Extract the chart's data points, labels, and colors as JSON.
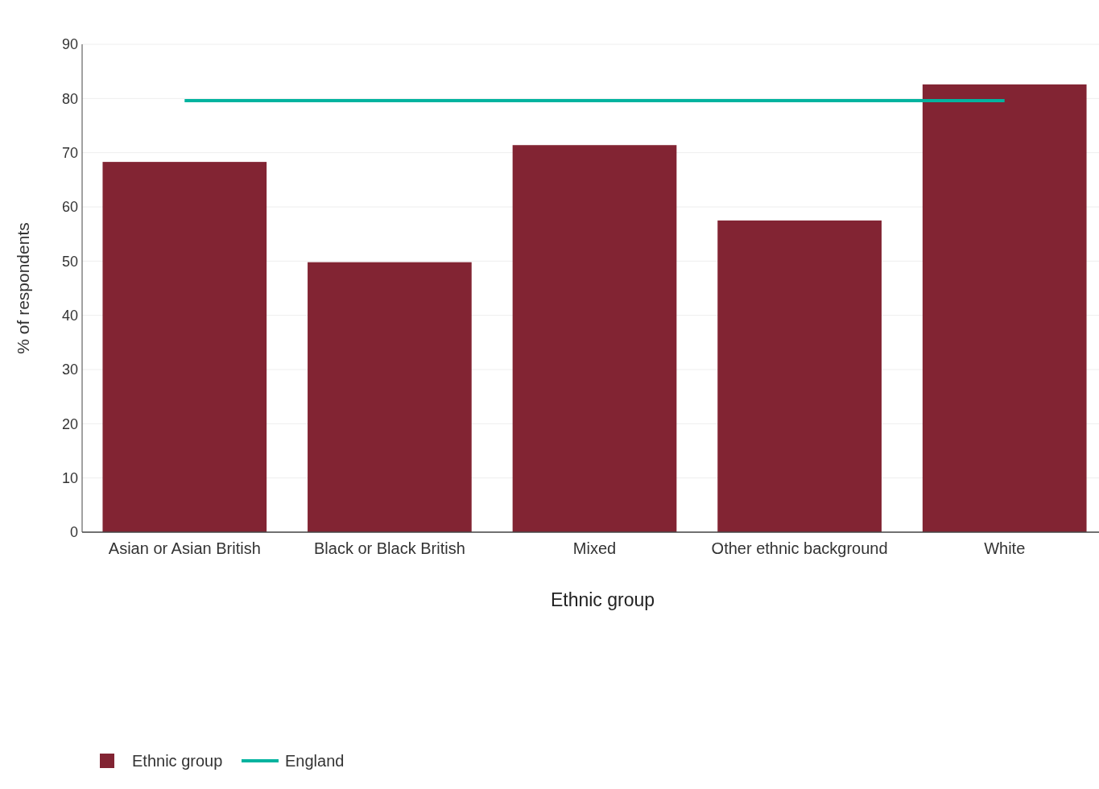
{
  "chart_data": {
    "type": "bar",
    "xlabel": "Ethnic group",
    "ylabel": "% of respondents",
    "categories": [
      "Asian or Asian British",
      "Black or Black British",
      "Mixed",
      "Other ethnic background",
      "White"
    ],
    "series": [
      {
        "name": "Ethnic group",
        "color": "#822433",
        "values": [
          68.3,
          49.8,
          71.4,
          57.5,
          82.6
        ]
      },
      {
        "name": "England",
        "type": "line",
        "color": "#00b39f",
        "values": [
          79.6,
          79.6,
          79.6,
          79.6,
          79.6
        ]
      }
    ],
    "ylim": [
      0,
      90
    ],
    "yticks": [
      0,
      10,
      20,
      30,
      40,
      50,
      60,
      70,
      80,
      90
    ],
    "grid": "y",
    "legend": "bottom left"
  }
}
